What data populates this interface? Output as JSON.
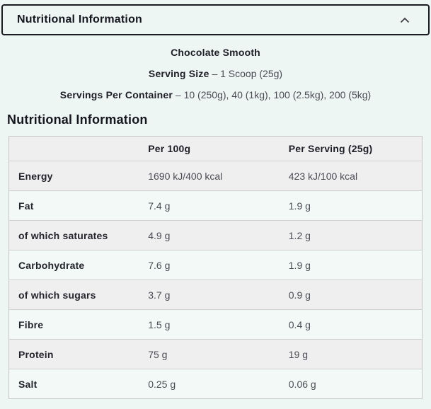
{
  "accordion": {
    "title": "Nutritional Information",
    "icon": "chevron-up"
  },
  "product": {
    "flavour": "Chocolate Smooth",
    "serving_size_label": "Serving Size",
    "serving_size_value": "– 1 Scoop (25g)",
    "servings_per_container_label": "Servings Per Container",
    "servings_per_container_value": "– 10 (250g), 40 (1kg), 100 (2.5kg), 200 (5kg)"
  },
  "section_title": "Nutritional Information",
  "table": {
    "columns": [
      "",
      "Per 100g",
      "Per Serving (25g)"
    ],
    "rows": [
      {
        "label": "Energy",
        "per_100g": "1690 kJ/400 kcal",
        "per_serving": "423 kJ/100 kcal"
      },
      {
        "label": "Fat",
        "per_100g": "7.4 g",
        "per_serving": "1.9 g"
      },
      {
        "label": "of which saturates",
        "per_100g": "4.9 g",
        "per_serving": "1.2 g"
      },
      {
        "label": "Carbohydrate",
        "per_100g": "7.6 g",
        "per_serving": "1.9 g"
      },
      {
        "label": "of which sugars",
        "per_100g": "3.7 g",
        "per_serving": "0.9 g"
      },
      {
        "label": "Fibre",
        "per_100g": "1.5 g",
        "per_serving": "0.4 g"
      },
      {
        "label": "Protein",
        "per_100g": "75 g",
        "per_serving": "19 g"
      },
      {
        "label": "Salt",
        "per_100g": "0.25 g",
        "per_serving": "0.06 g"
      }
    ]
  },
  "colors": {
    "page_background": "#edf6f3",
    "accordion_border": "#1b1b22",
    "row_stripe_gray": "#f0eff0",
    "row_stripe_mint": "#f2f9f6",
    "table_border": "#c6c6c6"
  }
}
